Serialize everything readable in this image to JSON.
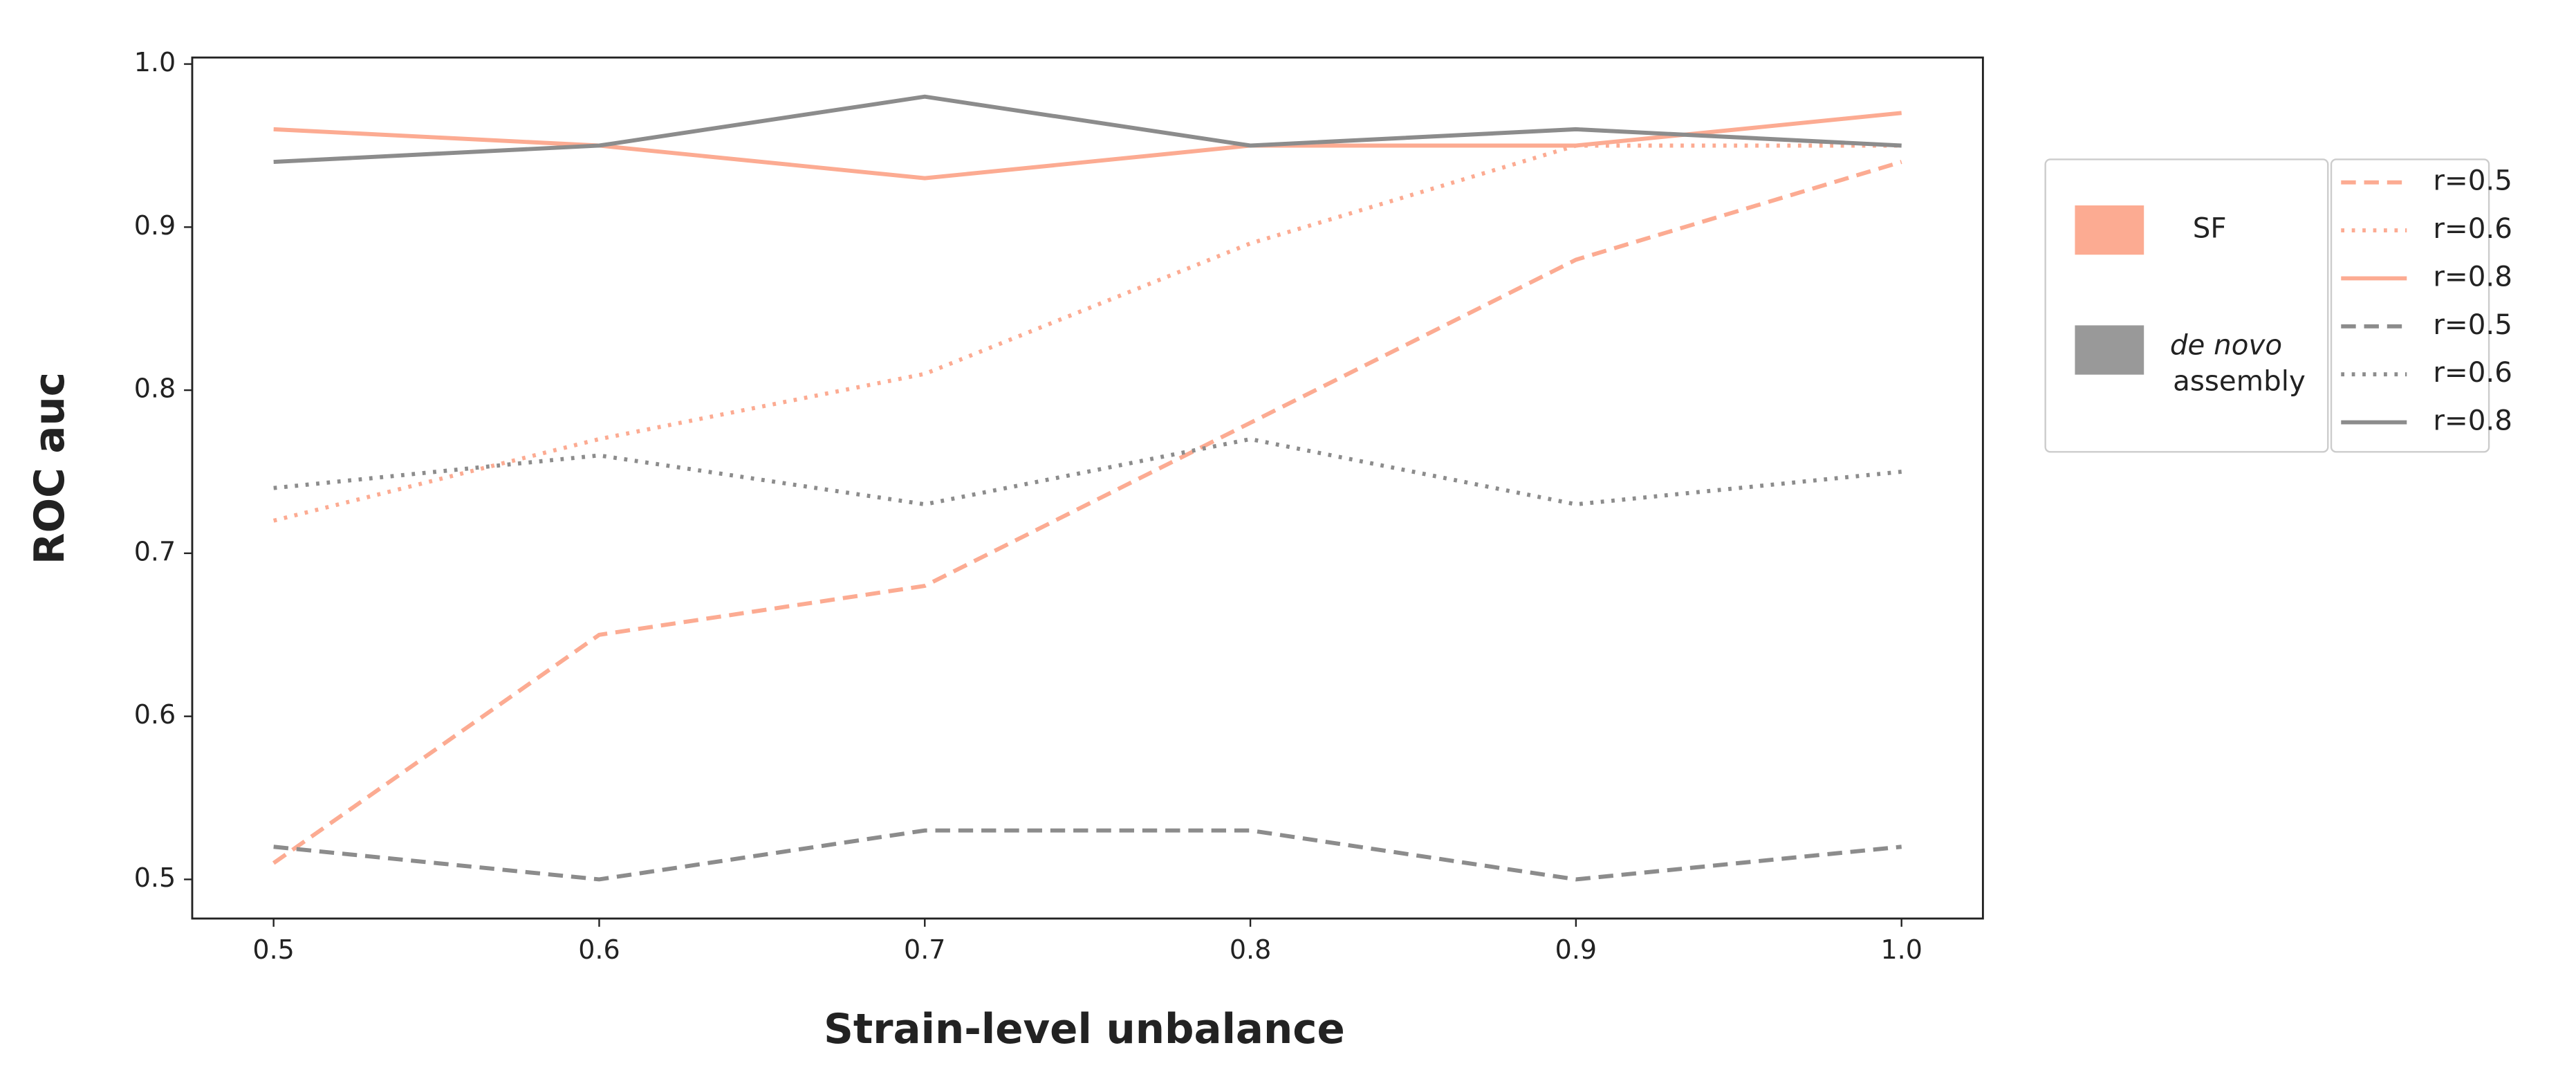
{
  "chart_data": {
    "type": "line",
    "x_label": "Strain-level unbalance",
    "y_label": "ROC auc",
    "x": [
      0.5,
      0.6,
      0.7,
      0.8,
      0.9,
      1.0
    ],
    "xlim": [
      0.475,
      1.025
    ],
    "ylim": [
      0.476,
      1.004
    ],
    "xticks": [
      0.5,
      0.6,
      0.7,
      0.8,
      0.9,
      {
        "value": 1.0,
        "label": "1.0"
      }
    ],
    "yticks": [
      0.5,
      0.6,
      0.7,
      0.8,
      0.9,
      {
        "value": 1.0,
        "label": "1.0"
      }
    ],
    "groups": [
      {
        "label": "SF",
        "color": "#fcab92"
      },
      {
        "label_parts": [
          "de novo",
          "assembly"
        ],
        "color": "#999999"
      }
    ],
    "series": [
      {
        "name": "r=0.5",
        "color": "#fcab92",
        "linestyle": "dashed",
        "values": [
          0.51,
          0.65,
          0.68,
          0.78,
          0.88,
          0.94
        ]
      },
      {
        "name": "r=0.6",
        "color": "#fcab92",
        "linestyle": "dotted",
        "values": [
          0.72,
          0.77,
          0.81,
          0.89,
          0.95,
          0.95
        ]
      },
      {
        "name": "r=0.8",
        "color": "#fcab92",
        "linestyle": "solid",
        "values": [
          0.96,
          0.95,
          0.93,
          0.95,
          0.95,
          0.97
        ]
      },
      {
        "name": "r=0.5",
        "color": "#8c8c8c",
        "linestyle": "dashed",
        "values": [
          0.52,
          0.5,
          0.53,
          0.53,
          0.5,
          0.52
        ]
      },
      {
        "name": "r=0.6",
        "color": "#8c8c8c",
        "linestyle": "dotted",
        "values": [
          0.74,
          0.76,
          0.73,
          0.77,
          0.73,
          0.75
        ]
      },
      {
        "name": "r=0.8",
        "color": "#8c8c8c",
        "linestyle": "solid",
        "values": [
          0.94,
          0.95,
          0.98,
          0.95,
          0.96,
          0.95
        ]
      }
    ]
  }
}
